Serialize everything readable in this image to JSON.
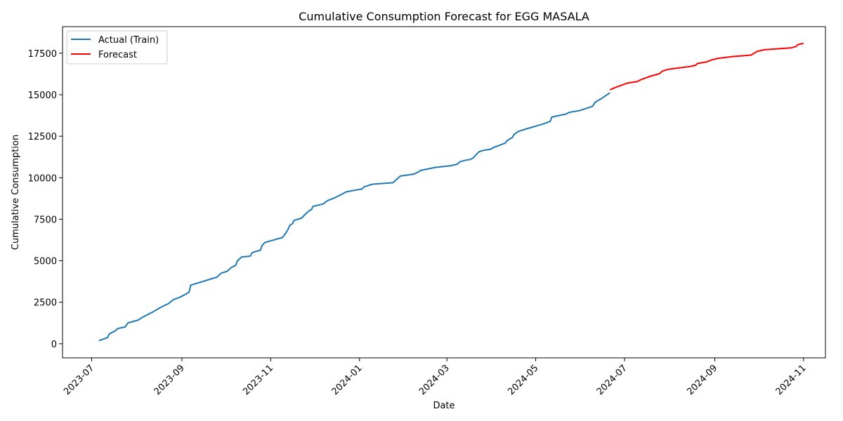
{
  "chart_data": {
    "type": "line",
    "title": "Cumulative Consumption Forecast for EGG MASALA",
    "xlabel": "Date",
    "ylabel": "Cumulative Consumption",
    "xlim": [
      "2023-06-11",
      "2024-11-16"
    ],
    "ylim": [
      -850,
      19100
    ],
    "x_ticks": [
      "2023-07",
      "2023-09",
      "2023-11",
      "2024-01",
      "2024-03",
      "2024-05",
      "2024-07",
      "2024-09",
      "2024-11"
    ],
    "y_ticks": [
      0,
      2500,
      5000,
      7500,
      10000,
      12500,
      15000,
      17500
    ],
    "y_tick_labels": [
      "0",
      "2500",
      "5000",
      "7500",
      "10000",
      "12500",
      "15000",
      "17500"
    ],
    "grid": false,
    "legend_position": "top-left",
    "colors": {
      "train": "#1f77b4",
      "forecast": "#ff0000"
    },
    "series": [
      {
        "name": "Actual (Train)",
        "key": "train",
        "points": [
          [
            "2023-07-06",
            180
          ],
          [
            "2023-07-12",
            370
          ],
          [
            "2023-07-13",
            580
          ],
          [
            "2023-07-15",
            680
          ],
          [
            "2023-07-17",
            760
          ],
          [
            "2023-07-19",
            920
          ],
          [
            "2023-07-24",
            1010
          ],
          [
            "2023-07-26",
            1260
          ],
          [
            "2023-08-02",
            1430
          ],
          [
            "2023-08-05",
            1600
          ],
          [
            "2023-08-12",
            1910
          ],
          [
            "2023-08-17",
            2170
          ],
          [
            "2023-08-21",
            2340
          ],
          [
            "2023-08-23",
            2430
          ],
          [
            "2023-08-26",
            2650
          ],
          [
            "2023-08-31",
            2820
          ],
          [
            "2023-09-04",
            3000
          ],
          [
            "2023-09-06",
            3120
          ],
          [
            "2023-09-07",
            3530
          ],
          [
            "2023-09-25",
            4010
          ],
          [
            "2023-09-28",
            4250
          ],
          [
            "2023-10-02",
            4360
          ],
          [
            "2023-10-05",
            4600
          ],
          [
            "2023-10-08",
            4720
          ],
          [
            "2023-10-09",
            4980
          ],
          [
            "2023-10-12",
            5230
          ],
          [
            "2023-10-18",
            5280
          ],
          [
            "2023-10-19",
            5460
          ],
          [
            "2023-10-21",
            5540
          ],
          [
            "2023-10-25",
            5640
          ],
          [
            "2023-10-26",
            5910
          ],
          [
            "2023-10-28",
            6100
          ],
          [
            "2023-11-09",
            6400
          ],
          [
            "2023-11-11",
            6620
          ],
          [
            "2023-11-13",
            6900
          ],
          [
            "2023-11-14",
            7120
          ],
          [
            "2023-11-16",
            7240
          ],
          [
            "2023-11-17",
            7430
          ],
          [
            "2023-11-22",
            7560
          ],
          [
            "2023-11-25",
            7820
          ],
          [
            "2023-11-27",
            7990
          ],
          [
            "2023-11-29",
            8080
          ],
          [
            "2023-11-30",
            8270
          ],
          [
            "2023-12-07",
            8420
          ],
          [
            "2023-12-10",
            8620
          ],
          [
            "2023-12-15",
            8790
          ],
          [
            "2023-12-23",
            9150
          ],
          [
            "2024-01-03",
            9330
          ],
          [
            "2024-01-04",
            9450
          ],
          [
            "2024-01-10",
            9610
          ],
          [
            "2024-01-24",
            9700
          ],
          [
            "2024-01-29",
            10100
          ],
          [
            "2024-02-07",
            10210
          ],
          [
            "2024-02-10",
            10330
          ],
          [
            "2024-02-12",
            10440
          ],
          [
            "2024-02-22",
            10620
          ],
          [
            "2024-03-04",
            10730
          ],
          [
            "2024-03-08",
            10810
          ],
          [
            "2024-03-10",
            10960
          ],
          [
            "2024-03-13",
            11040
          ],
          [
            "2024-03-17",
            11100
          ],
          [
            "2024-03-19",
            11190
          ],
          [
            "2024-03-21",
            11380
          ],
          [
            "2024-03-23",
            11560
          ],
          [
            "2024-03-26",
            11650
          ],
          [
            "2024-03-31",
            11720
          ],
          [
            "2024-04-02",
            11820
          ],
          [
            "2024-04-10",
            12080
          ],
          [
            "2024-04-11",
            12210
          ],
          [
            "2024-04-13",
            12330
          ],
          [
            "2024-04-15",
            12420
          ],
          [
            "2024-04-16",
            12600
          ],
          [
            "2024-04-19",
            12790
          ],
          [
            "2024-04-24",
            12930
          ],
          [
            "2024-05-05",
            13210
          ],
          [
            "2024-05-11",
            13400
          ],
          [
            "2024-05-12",
            13650
          ],
          [
            "2024-05-22",
            13840
          ],
          [
            "2024-05-24",
            13940
          ],
          [
            "2024-05-31",
            14040
          ],
          [
            "2024-06-09",
            14300
          ],
          [
            "2024-06-11",
            14560
          ],
          [
            "2024-06-15",
            14760
          ],
          [
            "2024-06-21",
            15120
          ]
        ]
      },
      {
        "name": "Forecast",
        "key": "forecast",
        "points": [
          [
            "2024-06-21",
            15300
          ],
          [
            "2024-06-25",
            15450
          ],
          [
            "2024-07-03",
            15700
          ],
          [
            "2024-07-10",
            15800
          ],
          [
            "2024-07-12",
            15900
          ],
          [
            "2024-07-19",
            16120
          ],
          [
            "2024-07-25",
            16270
          ],
          [
            "2024-07-27",
            16420
          ],
          [
            "2024-07-31",
            16530
          ],
          [
            "2024-08-15",
            16700
          ],
          [
            "2024-08-19",
            16780
          ],
          [
            "2024-08-20",
            16880
          ],
          [
            "2024-08-26",
            16970
          ],
          [
            "2024-08-30",
            17100
          ],
          [
            "2024-09-03",
            17190
          ],
          [
            "2024-09-13",
            17300
          ],
          [
            "2024-09-26",
            17390
          ],
          [
            "2024-09-30",
            17610
          ],
          [
            "2024-10-05",
            17710
          ],
          [
            "2024-10-23",
            17820
          ],
          [
            "2024-10-27",
            17910
          ],
          [
            "2024-10-28",
            18020
          ],
          [
            "2024-11-01",
            18100
          ]
        ]
      }
    ]
  }
}
